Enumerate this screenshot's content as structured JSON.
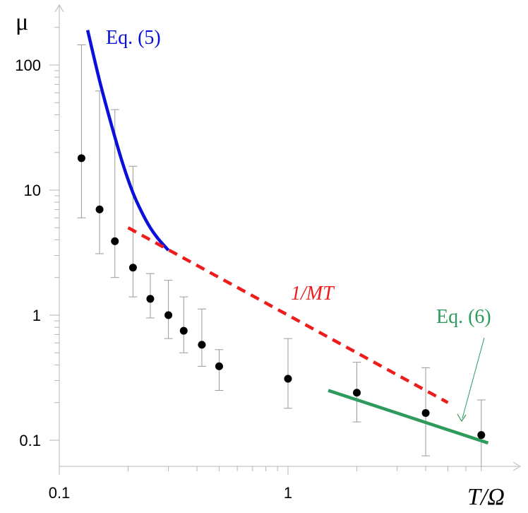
{
  "chart_data": {
    "type": "scatter",
    "title": "",
    "xlabel": "T/Ω",
    "ylabel": "μ",
    "xscale": "log",
    "yscale": "log",
    "xlim": [
      0.1,
      7.5
    ],
    "ylim": [
      0.06,
      300
    ],
    "grid": false,
    "x_ticks": [
      {
        "value": 0.1,
        "label": "0.1"
      },
      {
        "value": 1,
        "label": "1"
      }
    ],
    "y_ticks": [
      {
        "value": 0.1,
        "label": "0.1"
      },
      {
        "value": 1,
        "label": "1"
      },
      {
        "value": 10,
        "label": "10"
      },
      {
        "value": 100,
        "label": "100"
      }
    ],
    "points": {
      "color": "#000000",
      "x": [
        0.125,
        0.15,
        0.175,
        0.21,
        0.25,
        0.3,
        0.35,
        0.42,
        0.5,
        1.0,
        2.0,
        4.0,
        7.0
      ],
      "y": [
        18,
        7,
        3.9,
        2.4,
        1.35,
        1.0,
        0.75,
        0.58,
        0.39,
        0.31,
        0.24,
        0.165,
        0.11
      ],
      "y_low": [
        6,
        3.1,
        2.0,
        1.4,
        0.95,
        0.65,
        0.5,
        0.39,
        0.25,
        0.18,
        0.14,
        0.075,
        0.055
      ],
      "y_high": [
        145,
        62,
        44,
        15.5,
        2.15,
        1.9,
        1.4,
        1.12,
        0.53,
        0.65,
        0.42,
        0.38,
        0.21
      ],
      "error_color": "#9a9a9a"
    },
    "series": [
      {
        "style": "solid",
        "color": "#0a10d8",
        "label": "Eq. (5)",
        "x": [
          0.133,
          0.15,
          0.17,
          0.19,
          0.21,
          0.23,
          0.25,
          0.27,
          0.3
        ],
        "y": [
          190,
          75,
          32,
          16,
          9.5,
          6.6,
          5.0,
          4.1,
          3.3
        ]
      },
      {
        "style": "dashed",
        "color": "#ee1c1c",
        "label": "1/MT",
        "x": [
          0.2,
          5.0
        ],
        "y": [
          5.0,
          0.2
        ]
      },
      {
        "style": "solid",
        "color": "#2e9a5c",
        "label": "Eq. (6)",
        "x": [
          1.5,
          7.5
        ],
        "y": [
          0.25,
          0.095
        ]
      }
    ]
  }
}
